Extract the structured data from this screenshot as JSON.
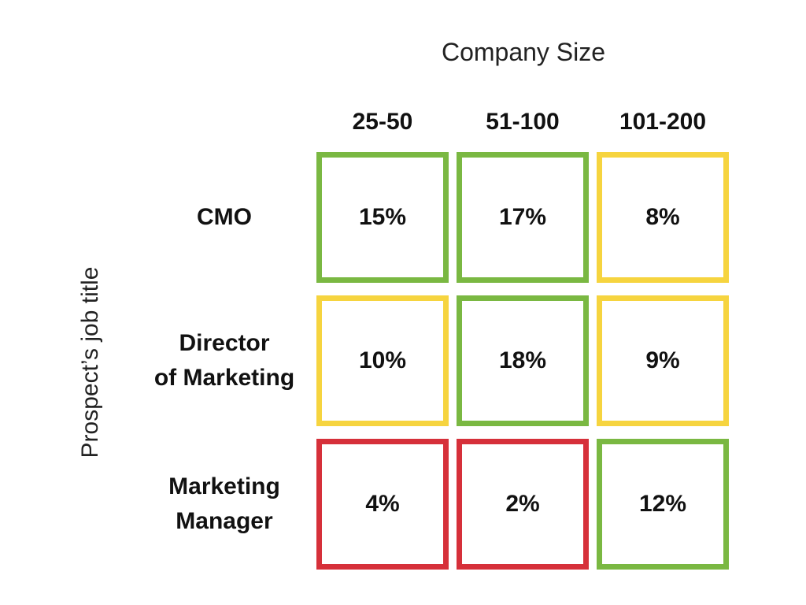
{
  "chart_data": {
    "type": "heatmap",
    "xlabel": "Company Size",
    "ylabel": "Prospect’s job title",
    "columns": [
      "25-50",
      "51-100",
      "101-200"
    ],
    "rows": [
      [
        "CMO"
      ],
      [
        "Director",
        "of Marketing"
      ],
      [
        "Marketing",
        "Manager"
      ]
    ],
    "values": [
      [
        "15%",
        "17%",
        "8%"
      ],
      [
        "10%",
        "18%",
        "9%"
      ],
      [
        "4%",
        "2%",
        "12%"
      ]
    ],
    "levels": [
      [
        "high",
        "high",
        "medium"
      ],
      [
        "medium",
        "high",
        "medium"
      ],
      [
        "low",
        "low",
        "high"
      ]
    ],
    "level_colors": {
      "high": "#7ab842",
      "medium": "#f6d43f",
      "low": "#d6303a"
    }
  }
}
